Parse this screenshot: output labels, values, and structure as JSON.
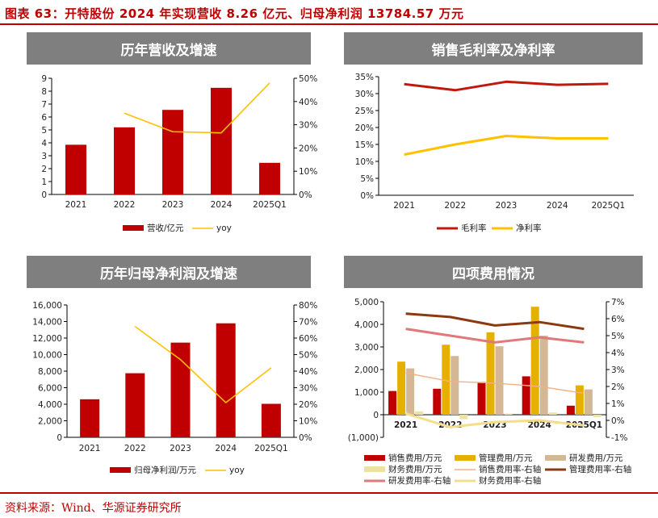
{
  "page": {
    "title": "图表 63：开特股份 2024 年实现营收 8.26 亿元、归母净利润 13784.57 万元",
    "source": "资料来源：Wind、华源证券研究所"
  },
  "colors": {
    "red": "#c00000",
    "dark_red": "#c0180c",
    "yellow": "#ffc000",
    "gold": "#e6b000",
    "tan": "#d4b896",
    "light_yellow": "#ece3a3",
    "orange_line": "#f4b183",
    "brown": "#8b3a0f",
    "pink": "#e07a7a",
    "pale_yellow": "#f5dd8c"
  },
  "chart_data": [
    {
      "id": "revenue",
      "type": "bar",
      "title": "历年营收及增速",
      "categories": [
        "2021",
        "2022",
        "2023",
        "2024",
        "2025Q1"
      ],
      "left_axis": {
        "min": 0,
        "max": 9,
        "step": 1,
        "ticks": [
          "0",
          "1",
          "2",
          "3",
          "4",
          "5",
          "6",
          "7",
          "8",
          "9"
        ]
      },
      "right_axis": {
        "min": 0,
        "max": 50,
        "step": 10,
        "ticks": [
          "0%",
          "10%",
          "20%",
          "30%",
          "40%",
          "50%"
        ]
      },
      "series": [
        {
          "name": "营收/亿元",
          "kind": "bar",
          "axis": "left",
          "values": [
            3.85,
            5.2,
            6.55,
            8.26,
            2.45
          ]
        },
        {
          "name": "yoy",
          "kind": "line",
          "axis": "right",
          "values": [
            null,
            35,
            27,
            26.5,
            48
          ]
        }
      ],
      "grid": false,
      "legend": "bottom"
    },
    {
      "id": "margins",
      "type": "line",
      "title": "销售毛利率及净利率",
      "categories": [
        "2021",
        "2022",
        "2023",
        "2024",
        "2025Q1"
      ],
      "left_axis": {
        "min": 0,
        "max": 35,
        "step": 5,
        "ticks": [
          "0%",
          "5%",
          "10%",
          "15%",
          "20%",
          "25%",
          "30%",
          "35%"
        ]
      },
      "series": [
        {
          "name": "毛利率",
          "values": [
            32.8,
            31.0,
            33.5,
            32.6,
            32.9
          ]
        },
        {
          "name": "净利率",
          "values": [
            12.0,
            15.0,
            17.5,
            16.8,
            16.8
          ]
        }
      ],
      "grid": false,
      "legend": "bottom"
    },
    {
      "id": "net_profit",
      "type": "bar",
      "title": "历年归母净利润及增速",
      "categories": [
        "2021",
        "2022",
        "2023",
        "2024",
        "2025Q1"
      ],
      "left_axis": {
        "min": 0,
        "max": 16000,
        "step": 2000,
        "ticks": [
          "0",
          "2,000",
          "4,000",
          "6,000",
          "8,000",
          "10,000",
          "12,000",
          "14,000",
          "16,000"
        ]
      },
      "right_axis": {
        "min": 0,
        "max": 80,
        "step": 10,
        "ticks": [
          "0%",
          "10%",
          "20%",
          "30%",
          "40%",
          "50%",
          "60%",
          "70%",
          "80%"
        ]
      },
      "series": [
        {
          "name": "归母净利润/万元",
          "kind": "bar",
          "axis": "left",
          "values": [
            4600,
            7750,
            11450,
            13784.57,
            4050
          ]
        },
        {
          "name": "yoy",
          "kind": "line",
          "axis": "right",
          "values": [
            null,
            67,
            47,
            21,
            42
          ]
        }
      ],
      "grid": false,
      "legend": "bottom"
    },
    {
      "id": "expenses",
      "type": "bar",
      "title": "四项费用情况",
      "categories": [
        "2021",
        "2022",
        "2023",
        "2024",
        "2025Q1"
      ],
      "left_axis": {
        "min": -1000,
        "max": 5000,
        "step": 1000,
        "ticks": [
          "(1,000)",
          "0",
          "1,000",
          "2,000",
          "3,000",
          "4,000",
          "5,000"
        ]
      },
      "right_axis": {
        "min": -1,
        "max": 7,
        "step": 1,
        "ticks": [
          "-1%",
          "0%",
          "1%",
          "2%",
          "3%",
          "4%",
          "5%",
          "6%",
          "7%"
        ]
      },
      "series": [
        {
          "name": "销售费用/万元",
          "kind": "bar",
          "axis": "left",
          "values": [
            1050,
            1150,
            1450,
            1700,
            400
          ]
        },
        {
          "name": "管理费用/万元",
          "kind": "bar",
          "axis": "left",
          "values": [
            2350,
            3100,
            3650,
            4780,
            1300
          ]
        },
        {
          "name": "研发费用/万元",
          "kind": "bar",
          "axis": "left",
          "values": [
            2050,
            2600,
            3030,
            3500,
            1120
          ]
        },
        {
          "name": "财务费用/万元",
          "kind": "bar",
          "axis": "left",
          "values": [
            150,
            -200,
            50,
            100,
            -100
          ]
        },
        {
          "name": "销售费用率-右轴",
          "kind": "line",
          "axis": "right",
          "values": [
            2.8,
            2.3,
            2.2,
            2.0,
            1.6
          ]
        },
        {
          "name": "管理费用率-右轴",
          "kind": "line",
          "axis": "right",
          "values": [
            6.3,
            6.1,
            5.6,
            5.8,
            5.4
          ]
        },
        {
          "name": "研发费用率-右轴",
          "kind": "line",
          "axis": "right",
          "values": [
            5.4,
            5.0,
            4.6,
            4.9,
            4.6
          ]
        },
        {
          "name": "财务费用率-右轴",
          "kind": "line",
          "axis": "right",
          "values": [
            0.4,
            -0.4,
            -0.1,
            0.0,
            -0.3
          ]
        }
      ],
      "grid": false,
      "legend": "bottom"
    }
  ]
}
